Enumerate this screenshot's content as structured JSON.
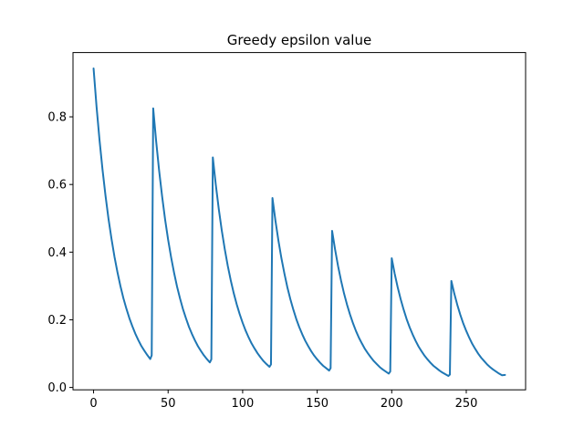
{
  "chart_data": {
    "type": "line",
    "title": "Greedy epsilon value",
    "xlabel": "",
    "ylabel": "",
    "xlim": [
      -13.8,
      289.8
    ],
    "ylim": [
      -0.007,
      0.99
    ],
    "xticks": [
      0,
      50,
      100,
      150,
      200,
      250
    ],
    "yticks": [
      0.0,
      0.2,
      0.4,
      0.6,
      0.8
    ],
    "xtick_labels": [
      "0",
      "50",
      "100",
      "150",
      "200",
      "250"
    ],
    "ytick_labels": [
      "0.0",
      "0.2",
      "0.4",
      "0.6",
      "0.8"
    ],
    "grid": false,
    "legend": "none",
    "color": "#1f77b4",
    "series": [
      {
        "x": [
          0,
          2,
          4,
          6,
          8,
          10,
          12,
          14,
          16,
          18,
          20,
          22,
          24,
          26,
          28,
          30,
          32,
          34,
          36,
          38,
          39,
          40,
          42,
          44,
          46,
          48,
          50,
          52,
          54,
          56,
          58,
          60,
          62,
          64,
          66,
          68,
          70,
          72,
          74,
          76,
          78,
          79,
          80,
          82,
          84,
          86,
          88,
          90,
          92,
          94,
          96,
          98,
          100,
          102,
          104,
          106,
          108,
          110,
          112,
          114,
          116,
          118,
          119,
          120,
          122,
          124,
          126,
          128,
          130,
          132,
          134,
          136,
          138,
          140,
          142,
          144,
          146,
          148,
          150,
          152,
          154,
          156,
          158,
          159,
          160,
          162,
          164,
          166,
          168,
          170,
          172,
          174,
          176,
          178,
          180,
          182,
          184,
          186,
          188,
          190,
          192,
          194,
          196,
          198,
          199,
          200,
          202,
          204,
          206,
          208,
          210,
          212,
          214,
          216,
          218,
          220,
          222,
          224,
          226,
          228,
          230,
          232,
          234,
          236,
          238,
          239,
          240,
          242,
          244,
          246,
          248,
          250,
          252,
          254,
          256,
          258,
          260,
          262,
          264,
          266,
          268,
          270,
          272,
          274,
          276
        ],
        "y": [
          0.943,
          0.83,
          0.731,
          0.644,
          0.567,
          0.499,
          0.44,
          0.387,
          0.341,
          0.3,
          0.264,
          0.233,
          0.205,
          0.181,
          0.159,
          0.14,
          0.123,
          0.109,
          0.096,
          0.084,
          0.095,
          0.825,
          0.727,
          0.64,
          0.564,
          0.496,
          0.437,
          0.385,
          0.339,
          0.298,
          0.263,
          0.231,
          0.204,
          0.179,
          0.158,
          0.139,
          0.122,
          0.108,
          0.095,
          0.084,
          0.074,
          0.083,
          0.68,
          0.599,
          0.527,
          0.464,
          0.409,
          0.36,
          0.317,
          0.279,
          0.246,
          0.217,
          0.191,
          0.168,
          0.148,
          0.13,
          0.115,
          0.101,
          0.089,
          0.078,
          0.069,
          0.061,
          0.068,
          0.56,
          0.493,
          0.434,
          0.382,
          0.337,
          0.296,
          0.261,
          0.23,
          0.202,
          0.178,
          0.157,
          0.138,
          0.122,
          0.107,
          0.094,
          0.083,
          0.073,
          0.064,
          0.057,
          0.05,
          0.057,
          0.463,
          0.408,
          0.359,
          0.316,
          0.278,
          0.245,
          0.216,
          0.19,
          0.167,
          0.147,
          0.13,
          0.114,
          0.101,
          0.089,
          0.078,
          0.069,
          0.06,
          0.053,
          0.047,
          0.041,
          0.047,
          0.382,
          0.336,
          0.296,
          0.261,
          0.23,
          0.202,
          0.178,
          0.157,
          0.138,
          0.121,
          0.107,
          0.094,
          0.083,
          0.073,
          0.064,
          0.057,
          0.05,
          0.044,
          0.039,
          0.034,
          0.038,
          0.315,
          0.277,
          0.244,
          0.215,
          0.189,
          0.167,
          0.147,
          0.129,
          0.114,
          0.1,
          0.088,
          0.078,
          0.068,
          0.06,
          0.053,
          0.047,
          0.041,
          0.036,
          0.037
        ]
      }
    ]
  }
}
